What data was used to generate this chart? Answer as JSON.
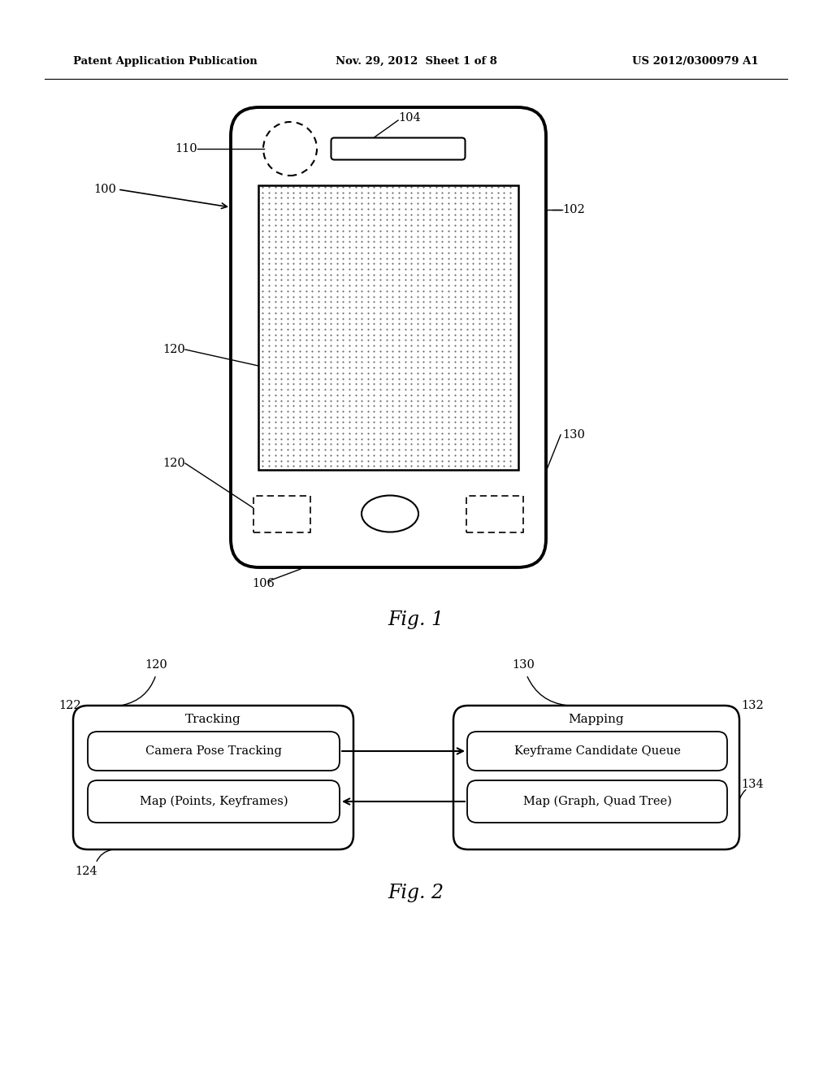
{
  "bg_color": "#ffffff",
  "header_left": "Patent Application Publication",
  "header_mid": "Nov. 29, 2012  Sheet 1 of 8",
  "header_right": "US 2012/0300979 A1",
  "fig1_caption": "Fig. 1",
  "fig2_caption": "Fig. 2"
}
